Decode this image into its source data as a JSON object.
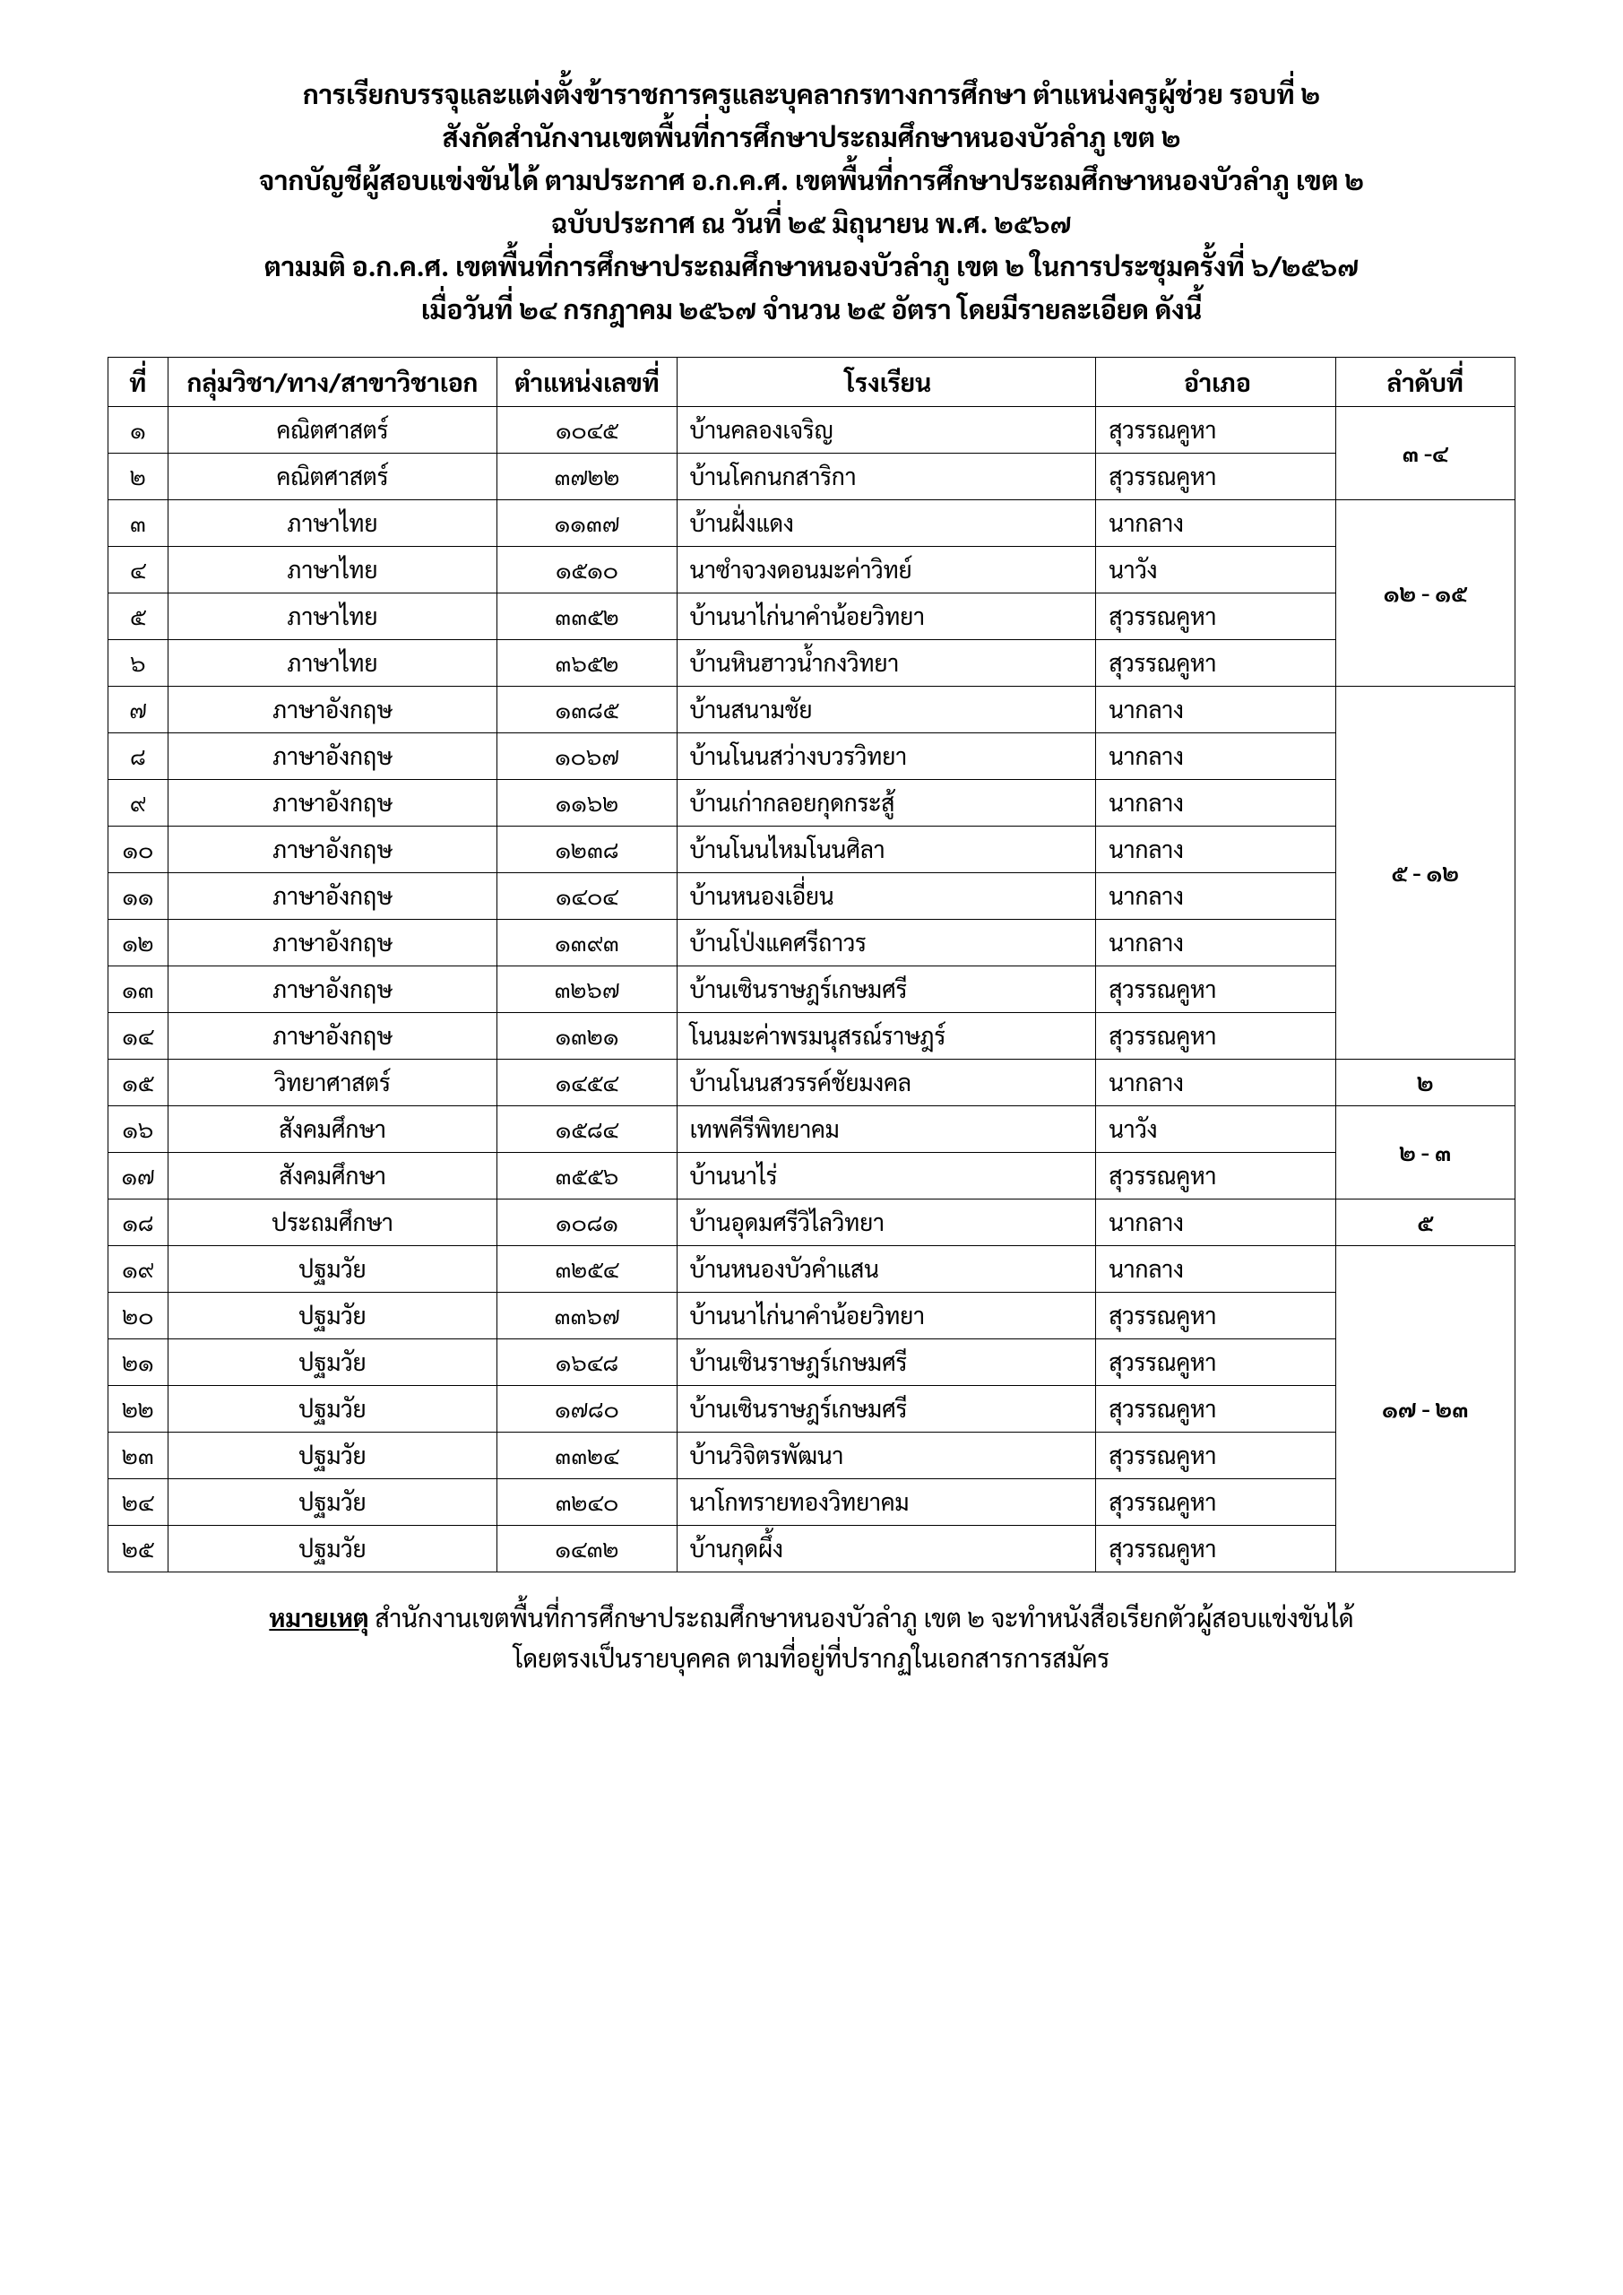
{
  "header": {
    "line1": "การเรียกบรรจุและแต่งตั้งข้าราชการครูและบุคลากรทางการศึกษา ตำแหน่งครูผู้ช่วย รอบที่ ๒",
    "line2": "สังกัดสำนักงานเขตพื้นที่การศึกษาประถมศึกษาหนองบัวลำภู เขต ๒",
    "line3": "จากบัญชีผู้สอบแข่งขันได้ ตามประกาศ อ.ก.ค.ศ. เขตพื้นที่การศึกษาประถมศึกษาหนองบัวลำภู เขต ๒",
    "line4": "ฉบับประกาศ ณ วันที่ ๒๕ มิถุนายน พ.ศ. ๒๕๖๗",
    "line5": "ตามมติ อ.ก.ค.ศ. เขตพื้นที่การศึกษาประถมศึกษาหนองบัวลำภู เขต ๒ ในการประชุมครั้งที่ ๖/๒๕๖๗",
    "line6": "เมื่อวันที่ ๒๔ กรกฎาคม ๒๕๖๗ จำนวน ๒๕ อัตรา โดยมีรายละเอียด ดังนี้"
  },
  "columns": {
    "num": "ที่",
    "subject": "กลุ่มวิชา/ทาง/สาขาวิชาเอก",
    "posno": "ตำแหน่งเลขที่",
    "school": "โรงเรียน",
    "district": "อำเภอ",
    "rank": "ลำดับที่"
  },
  "rows": [
    {
      "n": "๑",
      "subject": "คณิตศาสตร์",
      "pos": "๑๐๔๕",
      "school": "บ้านคลองเจริญ",
      "district": "สุวรรณคูหา"
    },
    {
      "n": "๒",
      "subject": "คณิตศาสตร์",
      "pos": "๓๗๒๒",
      "school": "บ้านโคกนกสาริกา",
      "district": "สุวรรณคูหา"
    },
    {
      "n": "๓",
      "subject": "ภาษาไทย",
      "pos": "๑๑๓๗",
      "school": "บ้านฝั่งแดง",
      "district": "นากลาง"
    },
    {
      "n": "๔",
      "subject": "ภาษาไทย",
      "pos": "๑๕๑๐",
      "school": "นาซำจวงดอนมะค่าวิทย์",
      "district": "นาวัง"
    },
    {
      "n": "๕",
      "subject": "ภาษาไทย",
      "pos": "๓๓๕๒",
      "school": "บ้านนาไก่นาคำน้อยวิทยา",
      "district": "สุวรรณคูหา"
    },
    {
      "n": "๖",
      "subject": "ภาษาไทย",
      "pos": "๓๖๕๒",
      "school": "บ้านหินฮาวน้ำกงวิทยา",
      "district": "สุวรรณคูหา"
    },
    {
      "n": "๗",
      "subject": "ภาษาอังกฤษ",
      "pos": "๑๓๘๕",
      "school": "บ้านสนามชัย",
      "district": "นากลาง"
    },
    {
      "n": "๘",
      "subject": "ภาษาอังกฤษ",
      "pos": "๑๐๖๗",
      "school": "บ้านโนนสว่างบวรวิทยา",
      "district": "นากลาง"
    },
    {
      "n": "๙",
      "subject": "ภาษาอังกฤษ",
      "pos": "๑๑๖๒",
      "school": "บ้านเก่ากลอยกุดกระสู้",
      "district": "นากลาง"
    },
    {
      "n": "๑๐",
      "subject": "ภาษาอังกฤษ",
      "pos": "๑๒๓๘",
      "school": "บ้านโนนไหมโนนศิลา",
      "district": "นากลาง"
    },
    {
      "n": "๑๑",
      "subject": "ภาษาอังกฤษ",
      "pos": "๑๔๐๔",
      "school": "บ้านหนองเอี่ยน",
      "district": "นากลาง"
    },
    {
      "n": "๑๒",
      "subject": "ภาษาอังกฤษ",
      "pos": "๑๓๙๓",
      "school": "บ้านโป่งแคศรีถาวร",
      "district": "นากลาง"
    },
    {
      "n": "๑๓",
      "subject": "ภาษาอังกฤษ",
      "pos": "๓๒๖๗",
      "school": "บ้านเซินราษฎร์เกษมศรี",
      "district": "สุวรรณคูหา"
    },
    {
      "n": "๑๔",
      "subject": "ภาษาอังกฤษ",
      "pos": "๑๓๒๑",
      "school": "โนนมะค่าพรมนุสรณ์ราษฎร์",
      "district": "สุวรรณคูหา"
    },
    {
      "n": "๑๕",
      "subject": "วิทยาศาสตร์",
      "pos": "๑๔๕๔",
      "school": "บ้านโนนสวรรค์ชัยมงคล",
      "district": "นากลาง"
    },
    {
      "n": "๑๖",
      "subject": "สังคมศึกษา",
      "pos": "๑๕๘๔",
      "school": "เทพคีรีพิทยาคม",
      "district": "นาวัง"
    },
    {
      "n": "๑๗",
      "subject": "สังคมศึกษา",
      "pos": "๓๕๕๖",
      "school": "บ้านนาไร่",
      "district": "สุวรรณคูหา"
    },
    {
      "n": "๑๘",
      "subject": "ประถมศึกษา",
      "pos": "๑๐๘๑",
      "school": "บ้านอุดมศรีวิไลวิทยา",
      "district": "นากลาง"
    },
    {
      "n": "๑๙",
      "subject": "ปฐมวัย",
      "pos": "๓๒๕๔",
      "school": "บ้านหนองบัวคำแสน",
      "district": "นากลาง"
    },
    {
      "n": "๒๐",
      "subject": "ปฐมวัย",
      "pos": "๓๓๖๗",
      "school": "บ้านนาไก่นาคำน้อยวิทยา",
      "district": "สุวรรณคูหา"
    },
    {
      "n": "๒๑",
      "subject": "ปฐมวัย",
      "pos": "๑๖๔๘",
      "school": "บ้านเซินราษฎร์เกษมศรี",
      "district": "สุวรรณคูหา"
    },
    {
      "n": "๒๒",
      "subject": "ปฐมวัย",
      "pos": "๑๗๘๐",
      "school": "บ้านเซินราษฎร์เกษมศรี",
      "district": "สุวรรณคูหา"
    },
    {
      "n": "๒๓",
      "subject": "ปฐมวัย",
      "pos": "๓๓๒๔",
      "school": "บ้านวิจิตรพัฒนา",
      "district": "สุวรรณคูหา"
    },
    {
      "n": "๒๔",
      "subject": "ปฐมวัย",
      "pos": "๓๒๔๐",
      "school": "นาโกทรายทองวิทยาคม",
      "district": "สุวรรณคูหา"
    },
    {
      "n": "๒๕",
      "subject": "ปฐมวัย",
      "pos": "๑๔๓๒",
      "school": "บ้านกุดผึ้ง",
      "district": "สุวรรณคูหา"
    }
  ],
  "rank_groups": [
    {
      "start": 0,
      "span": 2,
      "text": "๓ -๔"
    },
    {
      "start": 2,
      "span": 4,
      "text": "๑๒ - ๑๕"
    },
    {
      "start": 6,
      "span": 8,
      "text": "๕ - ๑๒"
    },
    {
      "start": 14,
      "span": 1,
      "text": "๒"
    },
    {
      "start": 15,
      "span": 2,
      "text": "๒ - ๓"
    },
    {
      "start": 17,
      "span": 1,
      "text": "๕"
    },
    {
      "start": 18,
      "span": 7,
      "text": "๑๗ - ๒๓"
    }
  ],
  "note": {
    "label": "หมายเหตุ",
    "line1": " สำนักงานเขตพื้นที่การศึกษาประถมศึกษาหนองบัวลำภู เขต ๒ จะทำหนังสือเรียกตัวผู้สอบแข่งขันได้",
    "line2": "โดยตรงเป็นรายบุคคล ตามที่อยู่ที่ปรากฏในเอกสารการสมัคร"
  }
}
